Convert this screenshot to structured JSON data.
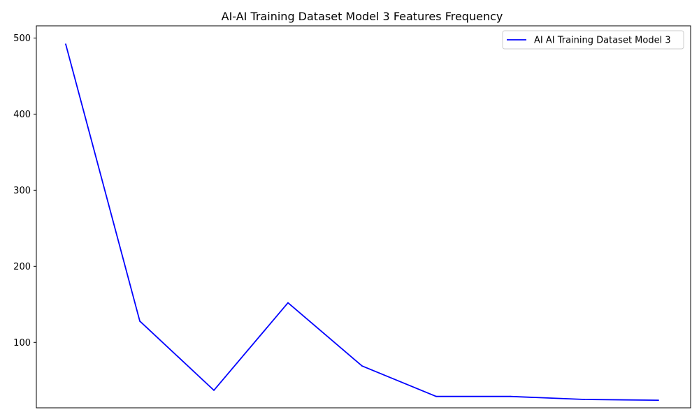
{
  "chart_data": {
    "type": "line",
    "title": "AI-AI Training Dataset Model 3 Features Frequency",
    "xlabel": "",
    "ylabel": "",
    "x_ticks_visible": false,
    "ylim": [
      14,
      516
    ],
    "y_ticks": [
      100,
      200,
      300,
      400,
      500
    ],
    "grid": false,
    "legend_position": "top-right",
    "series": [
      {
        "name": "AI AI Training Dataset Model 3",
        "color": "#0000ff",
        "values": [
          492,
          128,
          37,
          152,
          69,
          29,
          29,
          25,
          24
        ]
      }
    ]
  }
}
